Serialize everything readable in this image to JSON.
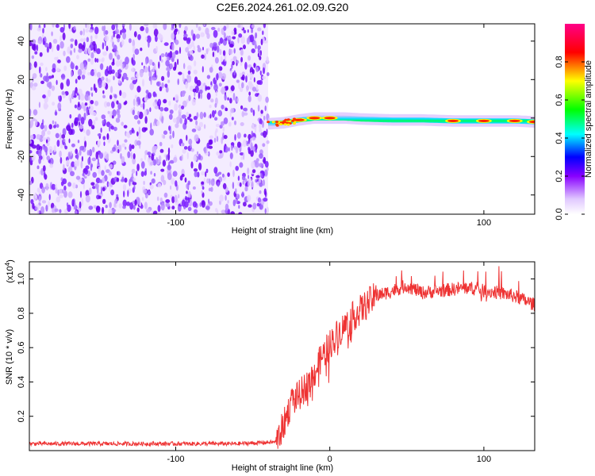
{
  "figure": {
    "title": "C2E6.2024.261.02.09.G20"
  },
  "chart_data": [
    {
      "type": "heatmap",
      "title": "C2E6.2024.261.02.09.G20",
      "xlabel": "Height of straight line (km)",
      "ylabel": "Frequency (Hz)",
      "xlim": [
        -195,
        133
      ],
      "ylim": [
        -50,
        49
      ],
      "xticks": [
        -100,
        100
      ],
      "yticks": [
        -40,
        -20,
        0,
        20,
        40
      ],
      "colorbar": {
        "label": "Normalized spectral amplitude",
        "range": [
          0,
          1
        ],
        "ticks": [
          0.0,
          0.2,
          0.4,
          0.6,
          0.8
        ],
        "colormap": [
          "#ffffff",
          "#8800ff",
          "#0000ff",
          "#00ffff",
          "#00ff00",
          "#ffff00",
          "#ff0000",
          "#ff00aa"
        ]
      },
      "noise_region": {
        "x_start": -195,
        "x_end": -40,
        "color": "#7a00ff"
      },
      "signal_track": {
        "x": [
          -40,
          -30,
          -20,
          -10,
          0,
          10,
          20,
          40,
          60,
          80,
          100,
          120,
          133
        ],
        "freq": [
          -3,
          -2.5,
          -1,
          0,
          0,
          0,
          -0.5,
          -1,
          -1,
          -1.5,
          -1.5,
          -1.5,
          -2
        ],
        "peak_amplitude": [
          0.5,
          0.9,
          0.85,
          0.95,
          1.0,
          0.6,
          0.55,
          0.6,
          0.55,
          0.85,
          0.9,
          0.75,
          0.9
        ]
      }
    },
    {
      "type": "line",
      "xlabel": "Height of straight line (km)",
      "ylabel": "SNR (10 * v/v)",
      "y_multiplier": "(x10",
      "y_multiplier_exp": "4",
      "y_multiplier_close": ")",
      "xlim": [
        -195,
        133
      ],
      "ylim": [
        0,
        1.1
      ],
      "xticks": [
        -100,
        0,
        100
      ],
      "yticks": [
        0.2,
        0.4,
        0.6,
        0.8,
        1.0
      ],
      "series": [
        {
          "color": "#ee3333",
          "x": [
            -195,
            -150,
            -100,
            -60,
            -35,
            -30,
            -25,
            -20,
            -15,
            -10,
            -5,
            0,
            5,
            10,
            15,
            20,
            25,
            30,
            40,
            50,
            60,
            70,
            80,
            90,
            100,
            110,
            120,
            133
          ],
          "y": [
            0.04,
            0.04,
            0.04,
            0.04,
            0.05,
            0.15,
            0.28,
            0.32,
            0.38,
            0.45,
            0.55,
            0.62,
            0.68,
            0.73,
            0.78,
            0.82,
            0.86,
            0.9,
            0.93,
            0.96,
            0.92,
            0.93,
            0.94,
            0.95,
            0.93,
            0.92,
            0.9,
            0.85
          ]
        }
      ]
    }
  ]
}
